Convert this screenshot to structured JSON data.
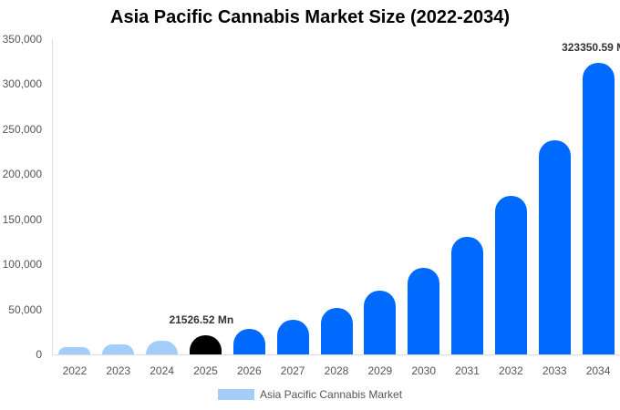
{
  "title": "Asia Pacific Cannabis Market Size (2022-2034)",
  "legend": {
    "label": "Asia Pacific Cannabis Market",
    "color": "#a3cdfb"
  },
  "y_ticks": [
    "0",
    "50,000",
    "100,000",
    "150,000",
    "200,000",
    "250,000",
    "300,000",
    "350,000"
  ],
  "annotations": {
    "a2025": "21526.52 Mn",
    "a2034": "323350.59 Mn"
  },
  "colors": {
    "historical": "#a3cdfb",
    "base": "#000000",
    "forecast": "#006aff"
  },
  "chart_data": {
    "type": "bar",
    "title": "Asia Pacific Cannabis Market Size (2022-2034)",
    "xlabel": "",
    "ylabel": "",
    "ylim": [
      0,
      350000
    ],
    "grid": false,
    "legend_position": "bottom",
    "categories": [
      "2022",
      "2023",
      "2024",
      "2025",
      "2026",
      "2027",
      "2028",
      "2029",
      "2030",
      "2031",
      "2032",
      "2033",
      "2034"
    ],
    "series": [
      {
        "name": "Asia Pacific Cannabis Market",
        "values": [
          8000,
          11100,
          15200,
          21526.52,
          28300,
          38400,
          51600,
          70800,
          96100,
          130500,
          176000,
          237700,
          323350.59
        ]
      }
    ],
    "annotations": [
      {
        "category": "2025",
        "text": "21526.52 Mn"
      },
      {
        "category": "2034",
        "text": "323350.59 Mn"
      }
    ]
  }
}
